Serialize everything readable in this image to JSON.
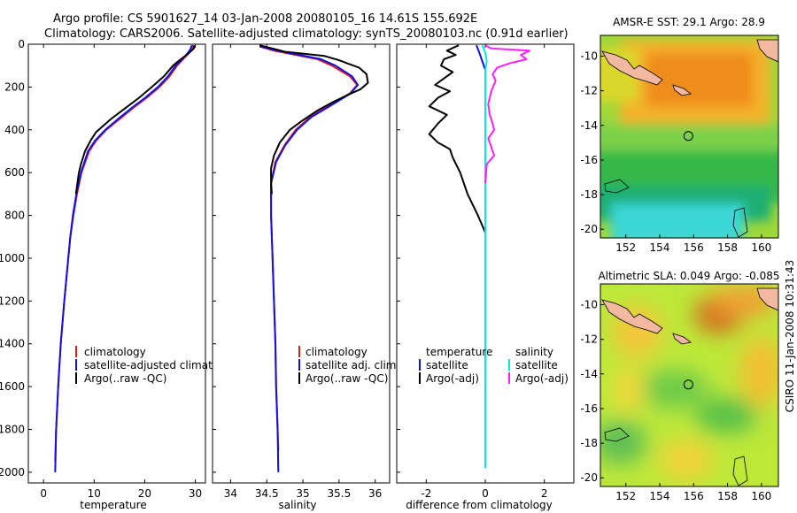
{
  "header": {
    "line1": "Argo profile: CS 5901627_14 03-Jan-2008 20080105_16 14.61S 155.692E",
    "line2": "Climatology: CARS2006. Satellite-adjusted climatology: synTS_20080103.nc (0.91d earlier)"
  },
  "side_label": "CSIRO 11-Jan-2008 10:31:43",
  "colors": {
    "climatology": "#e02020",
    "satellite": "#1010e0",
    "argo": "#000000",
    "sal_satellite": "#00e8e8",
    "sal_argo": "#ff20ff"
  },
  "chart_data": [
    {
      "type": "line",
      "xlabel": "temperature",
      "ylim": [
        2050,
        0
      ],
      "xlim": [
        -3,
        32
      ],
      "xticks": [
        0,
        10,
        20,
        30
      ],
      "yticks": [
        0,
        200,
        400,
        600,
        800,
        1000,
        1200,
        1400,
        1600,
        1800,
        2000
      ],
      "legend": [
        "climatology",
        "satellite-adjusted climatology",
        "Argo(..raw -QC)"
      ],
      "series": [
        {
          "name": "climatology",
          "color": "#e02020",
          "points": [
            [
              29.6,
              5
            ],
            [
              29.2,
              25
            ],
            [
              28.4,
              50
            ],
            [
              27.4,
              75
            ],
            [
              26.4,
              100
            ],
            [
              24.9,
              150
            ],
            [
              22.9,
              200
            ],
            [
              20.4,
              250
            ],
            [
              17.6,
              300
            ],
            [
              15,
              350
            ],
            [
              12.4,
              400
            ],
            [
              10.4,
              450
            ],
            [
              9,
              500
            ],
            [
              7.5,
              600
            ],
            [
              6.6,
              700
            ],
            [
              5.9,
              800
            ],
            [
              5.3,
              900
            ],
            [
              4.9,
              1000
            ],
            [
              4.1,
              1200
            ],
            [
              3.4,
              1400
            ],
            [
              2.9,
              1600
            ],
            [
              2.5,
              1800
            ],
            [
              2.3,
              1950
            ]
          ]
        },
        {
          "name": "satellite-adjusted climatology",
          "color": "#1010e0",
          "points": [
            [
              29.3,
              5
            ],
            [
              29,
              25
            ],
            [
              28.2,
              50
            ],
            [
              27.2,
              75
            ],
            [
              26.1,
              100
            ],
            [
              24.6,
              150
            ],
            [
              22.6,
              200
            ],
            [
              20.1,
              250
            ],
            [
              17.3,
              300
            ],
            [
              14.7,
              350
            ],
            [
              12.2,
              400
            ],
            [
              10.2,
              450
            ],
            [
              8.8,
              500
            ],
            [
              7.4,
              600
            ],
            [
              6.5,
              700
            ],
            [
              5.8,
              800
            ],
            [
              5.3,
              900
            ],
            [
              4.9,
              1000
            ],
            [
              4.1,
              1200
            ],
            [
              3.4,
              1400
            ],
            [
              2.9,
              1600
            ],
            [
              2.5,
              1800
            ],
            [
              2.3,
              2000
            ]
          ]
        },
        {
          "name": "Argo(..raw -QC)",
          "color": "#000000",
          "points": [
            [
              29.8,
              5
            ],
            [
              29.7,
              20
            ],
            [
              28.8,
              40
            ],
            [
              27.7,
              60
            ],
            [
              26.6,
              80
            ],
            [
              25.6,
              100
            ],
            [
              23.8,
              150
            ],
            [
              21.4,
              200
            ],
            [
              18.9,
              250
            ],
            [
              16.1,
              300
            ],
            [
              13.3,
              350
            ],
            [
              10.4,
              410
            ],
            [
              9.3,
              450
            ],
            [
              8.2,
              500
            ],
            [
              7.4,
              560
            ],
            [
              7,
              600
            ],
            [
              6.4,
              700
            ]
          ]
        }
      ]
    },
    {
      "type": "line",
      "xlabel": "salinity",
      "ylim": [
        2050,
        0
      ],
      "xlim": [
        33.75,
        36.2
      ],
      "xticks": [
        34,
        34.5,
        35,
        35.5,
        36
      ],
      "legend": [
        "climatology",
        "satellite adj. clim.",
        "Argo(..raw -QC)"
      ],
      "series": [
        {
          "name": "climatology",
          "color": "#e02020",
          "points": [
            [
              34.4,
              10
            ],
            [
              34.6,
              30
            ],
            [
              34.9,
              50
            ],
            [
              35.2,
              70
            ],
            [
              35.4,
              100
            ],
            [
              35.65,
              150
            ],
            [
              35.75,
              190
            ],
            [
              35.65,
              230
            ],
            [
              35.4,
              280
            ],
            [
              35.1,
              340
            ],
            [
              34.9,
              400
            ],
            [
              34.75,
              470
            ],
            [
              34.62,
              550
            ],
            [
              34.56,
              650
            ],
            [
              34.56,
              800
            ],
            [
              34.58,
              1000
            ],
            [
              34.6,
              1200
            ],
            [
              34.62,
              1400
            ],
            [
              34.63,
              1600
            ],
            [
              34.65,
              1800
            ],
            [
              34.66,
              1900
            ]
          ]
        },
        {
          "name": "satellite adj. clim.",
          "color": "#1010e0",
          "points": [
            [
              34.4,
              10
            ],
            [
              34.65,
              30
            ],
            [
              34.95,
              50
            ],
            [
              35.25,
              70
            ],
            [
              35.45,
              100
            ],
            [
              35.68,
              150
            ],
            [
              35.76,
              190
            ],
            [
              35.66,
              230
            ],
            [
              35.42,
              280
            ],
            [
              35.12,
              340
            ],
            [
              34.92,
              400
            ],
            [
              34.76,
              470
            ],
            [
              34.63,
              550
            ],
            [
              34.56,
              650
            ],
            [
              34.56,
              800
            ],
            [
              34.58,
              1000
            ],
            [
              34.6,
              1200
            ],
            [
              34.62,
              1400
            ],
            [
              34.63,
              1600
            ],
            [
              34.65,
              1800
            ],
            [
              34.66,
              2000
            ]
          ]
        },
        {
          "name": "Argo(..raw -QC)",
          "color": "#000000",
          "points": [
            [
              34.4,
              5
            ],
            [
              34.58,
              20
            ],
            [
              34.75,
              35
            ],
            [
              35.3,
              55
            ],
            [
              35.5,
              75
            ],
            [
              35.62,
              90
            ],
            [
              35.78,
              110
            ],
            [
              35.88,
              140
            ],
            [
              35.9,
              180
            ],
            [
              35.8,
              210
            ],
            [
              35.6,
              240
            ],
            [
              35.42,
              270
            ],
            [
              35.2,
              310
            ],
            [
              34.98,
              360
            ],
            [
              34.82,
              400
            ],
            [
              34.68,
              460
            ],
            [
              34.6,
              520
            ],
            [
              34.56,
              580
            ],
            [
              34.56,
              650
            ],
            [
              34.57,
              700
            ]
          ]
        }
      ]
    },
    {
      "type": "line",
      "xlabel": "difference from climatology",
      "ylim": [
        2050,
        0
      ],
      "xlim": [
        -3,
        3
      ],
      "xticks": [
        -2,
        0,
        2
      ],
      "legend_groups": [
        {
          "title": "temperature",
          "items": [
            "satellite",
            "Argo(-adj)"
          ]
        },
        {
          "title": "salinity",
          "items": [
            "satellite",
            "Argo(-adj)"
          ]
        }
      ],
      "series": [
        {
          "name": "temperature satellite",
          "color": "#1010e0",
          "points": [
            [
              -0.3,
              5
            ],
            [
              -0.2,
              40
            ],
            [
              -0.1,
              80
            ],
            [
              0,
              120
            ],
            [
              0,
              200
            ],
            [
              0,
              400
            ],
            [
              0,
              600
            ],
            [
              0,
              800
            ],
            [
              0,
              1000
            ],
            [
              0,
              1200
            ],
            [
              0,
              1400
            ],
            [
              0,
              1600
            ],
            [
              0,
              1800
            ],
            [
              0,
              1950
            ]
          ]
        },
        {
          "name": "temperature Argo(-adj)",
          "color": "#000000",
          "points": [
            [
              -0.9,
              5
            ],
            [
              -1.3,
              30
            ],
            [
              -1,
              50
            ],
            [
              -1.4,
              70
            ],
            [
              -1.5,
              100
            ],
            [
              -1.1,
              130
            ],
            [
              -1.4,
              160
            ],
            [
              -1.7,
              190
            ],
            [
              -1.2,
              220
            ],
            [
              -1.6,
              250
            ],
            [
              -1.9,
              290
            ],
            [
              -1.3,
              330
            ],
            [
              -1.6,
              370
            ],
            [
              -1.9,
              420
            ],
            [
              -1.6,
              460
            ],
            [
              -1.2,
              490
            ],
            [
              -1.1,
              530
            ],
            [
              -0.85,
              600
            ],
            [
              -0.6,
              700
            ],
            [
              -0.25,
              800
            ],
            [
              0,
              880
            ],
            [
              0,
              1000
            ]
          ]
        },
        {
          "name": "salinity satellite",
          "color": "#00e8e8",
          "points": [
            [
              -0.1,
              5
            ],
            [
              0,
              40
            ],
            [
              0.05,
              80
            ],
            [
              0,
              120
            ],
            [
              0,
              200
            ],
            [
              0,
              300
            ],
            [
              0,
              400
            ],
            [
              0,
              600
            ],
            [
              0,
              800
            ],
            [
              0,
              1000
            ],
            [
              0,
              1200
            ],
            [
              0,
              1400
            ],
            [
              0,
              1600
            ],
            [
              0,
              1800
            ],
            [
              0,
              1980
            ]
          ]
        },
        {
          "name": "salinity Argo(-adj)",
          "color": "#ff20ff",
          "points": [
            [
              0,
              5
            ],
            [
              0.2,
              20
            ],
            [
              1.5,
              30
            ],
            [
              1.2,
              50
            ],
            [
              1.4,
              70
            ],
            [
              0.8,
              90
            ],
            [
              0.4,
              110
            ],
            [
              0.25,
              140
            ],
            [
              0.35,
              170
            ],
            [
              0.2,
              220
            ],
            [
              0.1,
              280
            ],
            [
              0.15,
              330
            ],
            [
              0.25,
              370
            ],
            [
              0.3,
              400
            ],
            [
              0.1,
              440
            ],
            [
              0.2,
              480
            ],
            [
              0.3,
              520
            ],
            [
              0.05,
              560
            ],
            [
              0,
              650
            ]
          ]
        }
      ]
    },
    {
      "type": "heatmap",
      "title": "AMSR-E SST: 29.1  Argo: 28.9",
      "xticks": [
        152,
        154,
        156,
        158,
        160
      ],
      "yticks": [
        -10,
        -12,
        -14,
        -16,
        -18,
        -20
      ],
      "xlim": [
        150.5,
        161
      ],
      "ylim": [
        -20.5,
        -8.8
      ],
      "marker": [
        155.69,
        -14.61
      ]
    },
    {
      "type": "heatmap",
      "title": "Altimetric SLA: 0.049  Argo: -0.085",
      "xticks": [
        152,
        154,
        156,
        158,
        160
      ],
      "yticks": [
        -10,
        -12,
        -14,
        -16,
        -18,
        -20
      ],
      "xlim": [
        150.5,
        161
      ],
      "ylim": [
        -20.5,
        -8.8
      ],
      "marker": [
        155.69,
        -14.61
      ]
    }
  ]
}
